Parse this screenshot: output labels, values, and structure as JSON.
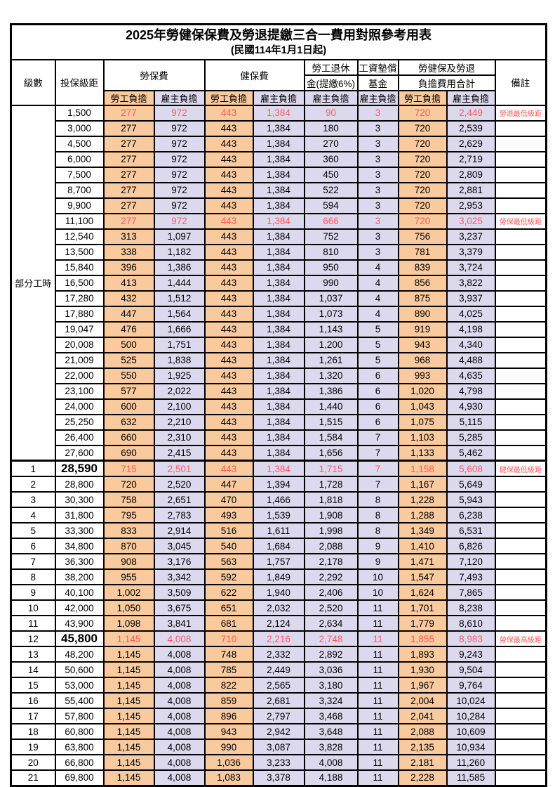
{
  "title": "2025年勞健保保費及勞退提繳三合一費用對照參考用表",
  "subtitle": "(民國114年1月1日起)",
  "colors": {
    "employee_col_bg": "#F9CA9E",
    "employer_col_bg": "#DCD9EE",
    "highlight_text": "#FF5A5A",
    "border": "#000000",
    "page_bg": "#FFFFFF"
  },
  "header": {
    "level": "級數",
    "bracket": "投保級距",
    "labor_insurance": "勞保費",
    "health_insurance": "健保費",
    "pension_line1": "勞工退休",
    "pension_line2": "金(提繳6%)",
    "wage_fund_line1": "工資墊償",
    "wage_fund_line2": "基金",
    "total_line1": "勞健保及勞退",
    "total_line2": "負擔費用合計",
    "note": "備註",
    "employee": "勞工負擔",
    "employer": "雇主負擔"
  },
  "table": {
    "part_time": {
      "label": "部分工時",
      "span": 23
    },
    "row_columns": [
      "level",
      "bracket",
      "labor_employee",
      "labor_employer",
      "health_employee",
      "health_employer",
      "pension_employer",
      "wage_fund_employer",
      "total_employee",
      "total_employer",
      "note",
      "style"
    ],
    "rows": [
      [
        "",
        "1,500",
        "277",
        "972",
        "443",
        "1,384",
        "90",
        "3",
        "720",
        "2,449",
        "勞退最低級距",
        "red"
      ],
      [
        "",
        "3,000",
        "277",
        "972",
        "443",
        "1,384",
        "180",
        "3",
        "720",
        "2,539",
        "",
        ""
      ],
      [
        "",
        "4,500",
        "277",
        "972",
        "443",
        "1,384",
        "270",
        "3",
        "720",
        "2,629",
        "",
        ""
      ],
      [
        "",
        "6,000",
        "277",
        "972",
        "443",
        "1,384",
        "360",
        "3",
        "720",
        "2,719",
        "",
        ""
      ],
      [
        "",
        "7,500",
        "277",
        "972",
        "443",
        "1,384",
        "450",
        "3",
        "720",
        "2,809",
        "",
        ""
      ],
      [
        "",
        "8,700",
        "277",
        "972",
        "443",
        "1,384",
        "522",
        "3",
        "720",
        "2,881",
        "",
        ""
      ],
      [
        "",
        "9,900",
        "277",
        "972",
        "443",
        "1,384",
        "594",
        "3",
        "720",
        "2,953",
        "",
        ""
      ],
      [
        "",
        "11,100",
        "277",
        "972",
        "443",
        "1,384",
        "666",
        "3",
        "720",
        "3,025",
        "勞保最低級距",
        "red"
      ],
      [
        "",
        "12,540",
        "313",
        "1,097",
        "443",
        "1,384",
        "752",
        "3",
        "756",
        "3,237",
        "",
        ""
      ],
      [
        "",
        "13,500",
        "338",
        "1,182",
        "443",
        "1,384",
        "810",
        "3",
        "781",
        "3,379",
        "",
        ""
      ],
      [
        "",
        "15,840",
        "396",
        "1,386",
        "443",
        "1,384",
        "950",
        "4",
        "839",
        "3,724",
        "",
        ""
      ],
      [
        "",
        "16,500",
        "413",
        "1,444",
        "443",
        "1,384",
        "990",
        "4",
        "856",
        "3,822",
        "",
        ""
      ],
      [
        "",
        "17,280",
        "432",
        "1,512",
        "443",
        "1,384",
        "1,037",
        "4",
        "875",
        "3,937",
        "",
        ""
      ],
      [
        "",
        "17,880",
        "447",
        "1,564",
        "443",
        "1,384",
        "1,073",
        "4",
        "890",
        "4,025",
        "",
        ""
      ],
      [
        "",
        "19,047",
        "476",
        "1,666",
        "443",
        "1,384",
        "1,143",
        "5",
        "919",
        "4,198",
        "",
        ""
      ],
      [
        "",
        "20,008",
        "500",
        "1,751",
        "443",
        "1,384",
        "1,200",
        "5",
        "943",
        "4,340",
        "",
        ""
      ],
      [
        "",
        "21,009",
        "525",
        "1,838",
        "443",
        "1,384",
        "1,261",
        "5",
        "968",
        "4,488",
        "",
        ""
      ],
      [
        "",
        "22,000",
        "550",
        "1,925",
        "443",
        "1,384",
        "1,320",
        "6",
        "993",
        "4,635",
        "",
        ""
      ],
      [
        "",
        "23,100",
        "577",
        "2,022",
        "443",
        "1,384",
        "1,386",
        "6",
        "1,020",
        "4,798",
        "",
        ""
      ],
      [
        "",
        "24,000",
        "600",
        "2,100",
        "443",
        "1,384",
        "1,440",
        "6",
        "1,043",
        "4,930",
        "",
        ""
      ],
      [
        "",
        "25,250",
        "632",
        "2,210",
        "443",
        "1,384",
        "1,515",
        "6",
        "1,075",
        "5,115",
        "",
        ""
      ],
      [
        "",
        "26,400",
        "660",
        "2,310",
        "443",
        "1,384",
        "1,584",
        "7",
        "1,103",
        "5,285",
        "",
        ""
      ],
      [
        "",
        "27,600",
        "690",
        "2,415",
        "443",
        "1,384",
        "1,656",
        "7",
        "1,133",
        "5,462",
        "",
        ""
      ],
      [
        "1",
        "28,590",
        "715",
        "2,501",
        "443",
        "1,384",
        "1,715",
        "7",
        "1,158",
        "5,608",
        "健保最低級距",
        "red big"
      ],
      [
        "2",
        "28,800",
        "720",
        "2,520",
        "447",
        "1,394",
        "1,728",
        "7",
        "1,167",
        "5,649",
        "",
        ""
      ],
      [
        "3",
        "30,300",
        "758",
        "2,651",
        "470",
        "1,466",
        "1,818",
        "8",
        "1,228",
        "5,943",
        "",
        ""
      ],
      [
        "4",
        "31,800",
        "795",
        "2,783",
        "493",
        "1,539",
        "1,908",
        "8",
        "1,288",
        "6,238",
        "",
        ""
      ],
      [
        "5",
        "33,300",
        "833",
        "2,914",
        "516",
        "1,611",
        "1,998",
        "8",
        "1,349",
        "6,531",
        "",
        ""
      ],
      [
        "6",
        "34,800",
        "870",
        "3,045",
        "540",
        "1,684",
        "2,088",
        "9",
        "1,410",
        "6,826",
        "",
        ""
      ],
      [
        "7",
        "36,300",
        "908",
        "3,176",
        "563",
        "1,757",
        "2,178",
        "9",
        "1,471",
        "7,120",
        "",
        ""
      ],
      [
        "8",
        "38,200",
        "955",
        "3,342",
        "592",
        "1,849",
        "2,292",
        "10",
        "1,547",
        "7,493",
        "",
        ""
      ],
      [
        "9",
        "40,100",
        "1,002",
        "3,509",
        "622",
        "1,940",
        "2,406",
        "10",
        "1,624",
        "7,865",
        "",
        ""
      ],
      [
        "10",
        "42,000",
        "1,050",
        "3,675",
        "651",
        "2,032",
        "2,520",
        "11",
        "1,701",
        "8,238",
        "",
        ""
      ],
      [
        "11",
        "43,900",
        "1,098",
        "3,841",
        "681",
        "2,124",
        "2,634",
        "11",
        "1,779",
        "8,610",
        "",
        ""
      ],
      [
        "12",
        "45,800",
        "1,145",
        "4,008",
        "710",
        "2,216",
        "2,748",
        "11",
        "1,855",
        "8,983",
        "勞保最高級距",
        "red big"
      ],
      [
        "13",
        "48,200",
        "1,145",
        "4,008",
        "748",
        "2,332",
        "2,892",
        "11",
        "1,893",
        "9,243",
        "",
        ""
      ],
      [
        "14",
        "50,600",
        "1,145",
        "4,008",
        "785",
        "2,449",
        "3,036",
        "11",
        "1,930",
        "9,504",
        "",
        ""
      ],
      [
        "15",
        "53,000",
        "1,145",
        "4,008",
        "822",
        "2,565",
        "3,180",
        "11",
        "1,967",
        "9,764",
        "",
        ""
      ],
      [
        "16",
        "55,400",
        "1,145",
        "4,008",
        "859",
        "2,681",
        "3,324",
        "11",
        "2,004",
        "10,024",
        "",
        ""
      ],
      [
        "17",
        "57,800",
        "1,145",
        "4,008",
        "896",
        "2,797",
        "3,468",
        "11",
        "2,041",
        "10,284",
        "",
        ""
      ],
      [
        "18",
        "60,800",
        "1,145",
        "4,008",
        "943",
        "2,942",
        "3,648",
        "11",
        "2,088",
        "10,609",
        "",
        ""
      ],
      [
        "19",
        "63,800",
        "1,145",
        "4,008",
        "990",
        "3,087",
        "3,828",
        "11",
        "2,135",
        "10,934",
        "",
        ""
      ],
      [
        "20",
        "66,800",
        "1,145",
        "4,008",
        "1,036",
        "3,233",
        "4,008",
        "11",
        "2,181",
        "11,260",
        "",
        ""
      ],
      [
        "21",
        "69,800",
        "1,145",
        "4,008",
        "1,083",
        "3,378",
        "4,188",
        "11",
        "2,228",
        "11,585",
        "",
        ""
      ]
    ]
  }
}
